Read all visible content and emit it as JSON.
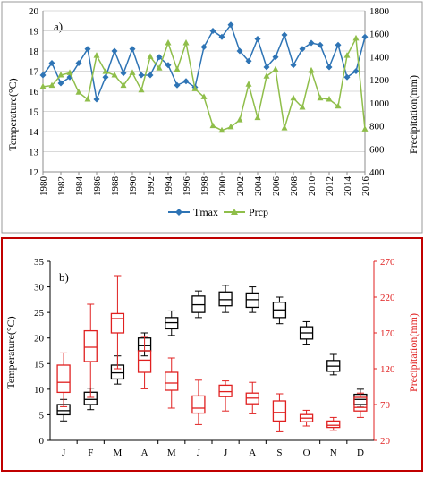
{
  "colors": {
    "tmax": "#2e74b5",
    "prcp": "#8fbe4a",
    "temp_box": "#000000",
    "prcp_box": "#e02020",
    "panel_b_border": "#c00000"
  },
  "chart_data": [
    {
      "type": "line",
      "panel_label": "a)",
      "x": [
        1980,
        1981,
        1982,
        1983,
        1984,
        1985,
        1986,
        1987,
        1988,
        1989,
        1990,
        1991,
        1992,
        1993,
        1994,
        1995,
        1996,
        1997,
        1998,
        1999,
        2000,
        2001,
        2002,
        2003,
        2004,
        2005,
        2006,
        2007,
        2008,
        2009,
        2010,
        2011,
        2012,
        2013,
        2014,
        2015,
        2016
      ],
      "x_ticks": [
        "1980",
        "1982",
        "1984",
        "1986",
        "1988",
        "1990",
        "1992",
        "1994",
        "1996",
        "1998",
        "2000",
        "2002",
        "2004",
        "2006",
        "2008",
        "2010",
        "2012",
        "2014",
        "2016"
      ],
      "series": [
        {
          "name": "Tmax",
          "axis": "left",
          "marker": "diamond",
          "values": [
            16.8,
            17.4,
            16.4,
            16.7,
            17.4,
            18.1,
            15.6,
            16.7,
            18.0,
            16.9,
            18.1,
            16.8,
            16.8,
            17.7,
            17.3,
            16.3,
            16.5,
            16.2,
            18.2,
            19.0,
            18.7,
            19.3,
            18.0,
            17.5,
            18.6,
            17.2,
            17.7,
            18.8,
            17.3,
            18.1,
            18.4,
            18.3,
            17.2,
            18.3,
            16.7,
            17.0,
            18.7
          ]
        },
        {
          "name": "Prcp",
          "axis": "right",
          "marker": "triangle",
          "values": [
            1140,
            1150,
            1240,
            1260,
            1090,
            1030,
            1410,
            1270,
            1240,
            1150,
            1260,
            1110,
            1400,
            1300,
            1520,
            1290,
            1520,
            1120,
            1050,
            800,
            760,
            790,
            850,
            1160,
            870,
            1230,
            1290,
            780,
            1040,
            960,
            1280,
            1040,
            1030,
            970,
            1410,
            1560,
            770
          ]
        }
      ],
      "y_left": {
        "label": "Temperature(°C)",
        "lim": [
          12,
          20
        ],
        "ticks": [
          "12",
          "13",
          "14",
          "15",
          "16",
          "17",
          "18",
          "19",
          "20"
        ]
      },
      "y_right": {
        "label": "Precipitation(mm)",
        "lim": [
          400,
          1800
        ],
        "ticks": [
          "400",
          "600",
          "800",
          "1000",
          "1200",
          "1400",
          "1600",
          "1800"
        ]
      },
      "grid": true,
      "legend_position": "bottom"
    },
    {
      "type": "box",
      "panel_label": "b)",
      "categories": [
        "J",
        "F",
        "M",
        "A",
        "M",
        "J",
        "J",
        "A",
        "S",
        "O",
        "N",
        "D"
      ],
      "series": [
        {
          "name": "Temperature",
          "axis": "left",
          "boxes": [
            {
              "min": 3.8,
              "q1": 5.0,
              "median": 5.8,
              "q3": 7.0,
              "max": 8.0
            },
            {
              "min": 6.0,
              "q1": 7.0,
              "median": 8.0,
              "q3": 9.4,
              "max": 10.2
            },
            {
              "min": 11.0,
              "q1": 12.0,
              "median": 13.2,
              "q3": 14.7,
              "max": 16.5
            },
            {
              "min": 16.5,
              "q1": 17.5,
              "median": 18.5,
              "q3": 20.0,
              "max": 21.0
            },
            {
              "min": 20.5,
              "q1": 21.8,
              "median": 23.0,
              "q3": 24.0,
              "max": 25.3
            },
            {
              "min": 24.0,
              "q1": 25.0,
              "median": 26.5,
              "q3": 28.2,
              "max": 29.2
            },
            {
              "min": 25.0,
              "q1": 26.3,
              "median": 27.5,
              "q3": 29.0,
              "max": 30.3
            },
            {
              "min": 25.0,
              "q1": 26.0,
              "median": 27.5,
              "q3": 28.8,
              "max": 30.0
            },
            {
              "min": 22.8,
              "q1": 24.0,
              "median": 25.5,
              "q3": 27.0,
              "max": 28.0
            },
            {
              "min": 18.8,
              "q1": 19.8,
              "median": 21.0,
              "q3": 22.2,
              "max": 23.2
            },
            {
              "min": 12.8,
              "q1": 13.5,
              "median": 14.5,
              "q3": 15.6,
              "max": 16.8
            },
            {
              "min": 6.5,
              "q1": 7.0,
              "median": 8.0,
              "q3": 9.0,
              "max": 10.0
            }
          ]
        },
        {
          "name": "Precipitation",
          "axis": "right",
          "boxes": [
            {
              "min": 67,
              "q1": 87,
              "median": 101,
              "q3": 125,
              "max": 142
            },
            {
              "min": 80,
              "q1": 130,
              "median": 150,
              "q3": 173,
              "max": 210
            },
            {
              "min": 120,
              "q1": 170,
              "median": 190,
              "q3": 197,
              "max": 250
            },
            {
              "min": 92,
              "q1": 115,
              "median": 132,
              "q3": 145,
              "max": 165
            },
            {
              "min": 65,
              "q1": 90,
              "median": 100,
              "q3": 115,
              "max": 135
            },
            {
              "min": 42,
              "q1": 58,
              "median": 65,
              "q3": 82,
              "max": 104
            },
            {
              "min": 61,
              "q1": 81,
              "median": 88,
              "q3": 97,
              "max": 103
            },
            {
              "min": 57,
              "q1": 71,
              "median": 79,
              "q3": 86,
              "max": 101
            },
            {
              "min": 32,
              "q1": 47,
              "median": 59,
              "q3": 75,
              "max": 85
            },
            {
              "min": 40,
              "q1": 46,
              "median": 51,
              "q3": 56,
              "max": 62
            },
            {
              "min": 34,
              "q1": 38,
              "median": 41,
              "q3": 47,
              "max": 52
            },
            {
              "min": 52,
              "q1": 61,
              "median": 66,
              "q3": 80,
              "max": 86
            }
          ]
        }
      ],
      "y_left": {
        "label": "Temperature(°C)",
        "lim": [
          0,
          35
        ],
        "ticks": [
          "0",
          "5",
          "10",
          "15",
          "20",
          "25",
          "30",
          "35"
        ]
      },
      "y_right": {
        "label": "Precipitation(mm)",
        "lim": [
          20,
          270
        ],
        "ticks": [
          "20",
          "70",
          "120",
          "170",
          "220",
          "270"
        ]
      },
      "grid": false
    }
  ]
}
